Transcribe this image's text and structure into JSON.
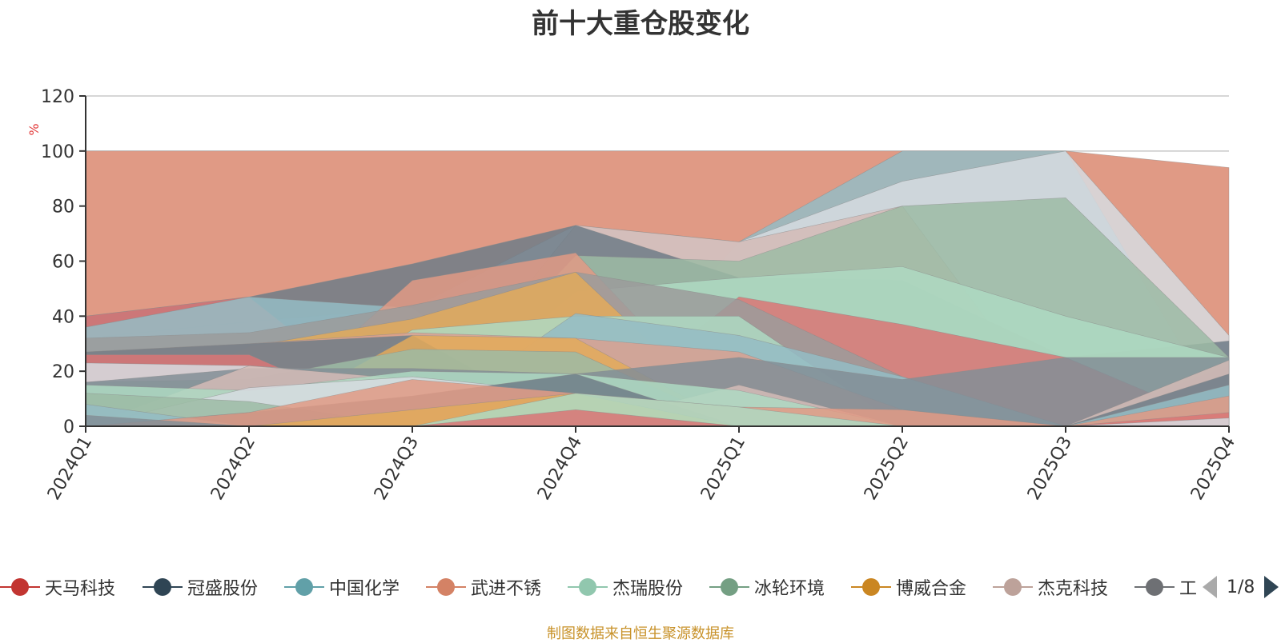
{
  "title": "前十大重仓股变化",
  "source": "制图数据来自恒生聚源数据库",
  "pager": "1/8",
  "chart_data": {
    "type": "area",
    "ylabel": "%",
    "ylim": [
      0,
      120
    ],
    "yticks": [
      0,
      20,
      40,
      60,
      80,
      100,
      120
    ],
    "categories": [
      "2024Q1",
      "2024Q2",
      "2024Q3",
      "2024Q4",
      "2025Q1",
      "2025Q2",
      "2025Q3",
      "2025Q4"
    ],
    "grid": true,
    "legend_position": "bottom",
    "layers": [
      {
        "color": "#e09a85",
        "values": [
          100,
          100,
          100,
          100,
          100,
          100,
          100,
          94
        ]
      },
      {
        "color": "#94bcc4",
        "values": [
          0,
          0,
          0,
          0,
          67,
          100,
          100,
          0
        ]
      },
      {
        "color": "#d6dce0",
        "values": [
          32,
          38,
          43,
          73,
          67,
          89,
          100,
          33
        ]
      },
      {
        "color": "#d3bbb6",
        "values": [
          0,
          0,
          0,
          73,
          67,
          80,
          0,
          0
        ]
      },
      {
        "color": "#6e7c87",
        "values": [
          40,
          47,
          59,
          73,
          54,
          53,
          25,
          31
        ]
      },
      {
        "color": "#9cbba5",
        "values": [
          0,
          0,
          0,
          62,
          60,
          80,
          83,
          25
        ]
      },
      {
        "color": "#aed9c2",
        "values": [
          0,
          0,
          0,
          49,
          54,
          58,
          40,
          25
        ]
      },
      {
        "color": "#d97575",
        "values": [
          40,
          47,
          0,
          0,
          47,
          37,
          25,
          0
        ]
      },
      {
        "color": "#94bcc4",
        "values": [
          36,
          47,
          43,
          0,
          0,
          0,
          0,
          0
        ]
      },
      {
        "color": "#e09a85",
        "values": [
          0,
          0,
          53,
          63,
          0,
          0,
          0,
          0
        ]
      },
      {
        "color": "#9b9b9b",
        "values": [
          32,
          34,
          44,
          56,
          46,
          18,
          0,
          0
        ]
      },
      {
        "color": "#e3aa5a",
        "values": [
          0,
          29,
          39,
          56,
          0,
          0,
          0,
          0
        ]
      },
      {
        "color": "#aed9c2",
        "values": [
          0,
          0,
          35,
          40,
          40,
          0,
          0,
          0
        ]
      },
      {
        "color": "#94bcc4",
        "values": [
          0,
          0,
          0,
          41,
          33,
          18,
          0,
          22
        ]
      },
      {
        "color": "#d9a090",
        "values": [
          27,
          30,
          34,
          32,
          27,
          6,
          0,
          0
        ]
      },
      {
        "color": "#6e7c87",
        "values": [
          27,
          30,
          33,
          0,
          0,
          0,
          0,
          0
        ]
      },
      {
        "color": "#d97575",
        "values": [
          26,
          26,
          0,
          0,
          0,
          0,
          0,
          0
        ]
      },
      {
        "color": "#d6dce0",
        "values": [
          23,
          22,
          18,
          0,
          0,
          0,
          0,
          0
        ]
      },
      {
        "color": "#e3aa5a",
        "values": [
          0,
          0,
          33,
          32,
          0,
          0,
          0,
          0
        ]
      },
      {
        "color": "#9cbba5",
        "values": [
          16,
          17,
          28,
          27,
          0,
          0,
          0,
          0
        ]
      },
      {
        "color": "#828e96",
        "values": [
          16,
          21,
          21,
          19,
          25,
          17,
          25,
          25
        ]
      },
      {
        "color": "#d3bbb6",
        "values": [
          0,
          22,
          17,
          0,
          15,
          0,
          0,
          24
        ]
      },
      {
        "color": "#aed9c2",
        "values": [
          15,
          13,
          20,
          19,
          13,
          0,
          0,
          0
        ]
      },
      {
        "color": "#d6dce0",
        "values": [
          0,
          14,
          18,
          12,
          0,
          0,
          0,
          0
        ]
      },
      {
        "color": "#9cbba5",
        "values": [
          12,
          9,
          0,
          0,
          0,
          0,
          0,
          0
        ]
      },
      {
        "color": "#6e7c87",
        "values": [
          0,
          5,
          11,
          19,
          0,
          0,
          0,
          19
        ]
      },
      {
        "color": "#94bcc4",
        "values": [
          8,
          0,
          0,
          0,
          0,
          0,
          0,
          15
        ]
      },
      {
        "color": "#e09a85",
        "values": [
          0,
          5,
          17,
          12,
          7,
          6,
          0,
          11
        ]
      },
      {
        "color": "#e3aa5a",
        "values": [
          0,
          0,
          6,
          12,
          0,
          0,
          0,
          0
        ]
      },
      {
        "color": "#aed9c2",
        "values": [
          0,
          0,
          0,
          12,
          7,
          0,
          0,
          0
        ]
      },
      {
        "color": "#828e96",
        "values": [
          4,
          0,
          0,
          0,
          0,
          0,
          0,
          0
        ]
      },
      {
        "color": "#d97575",
        "values": [
          0,
          0,
          0,
          6,
          0,
          0,
          0,
          5
        ]
      },
      {
        "color": "#d6dce0",
        "values": [
          0,
          0,
          0,
          0,
          0,
          0,
          0,
          3
        ]
      }
    ],
    "legend": [
      {
        "name": "天马科技",
        "color": "#c23531"
      },
      {
        "name": "冠盛股份",
        "color": "#2f4554"
      },
      {
        "name": "中国化学",
        "color": "#61a0a8"
      },
      {
        "name": "武进不锈",
        "color": "#d48265"
      },
      {
        "name": "杰瑞股份",
        "color": "#91c7ae"
      },
      {
        "name": "冰轮环境",
        "color": "#749f83"
      },
      {
        "name": "博威合金",
        "color": "#ca8622"
      },
      {
        "name": "杰克科技",
        "color": "#bda29a"
      },
      {
        "name": "工",
        "color": "#6e7074"
      }
    ]
  }
}
